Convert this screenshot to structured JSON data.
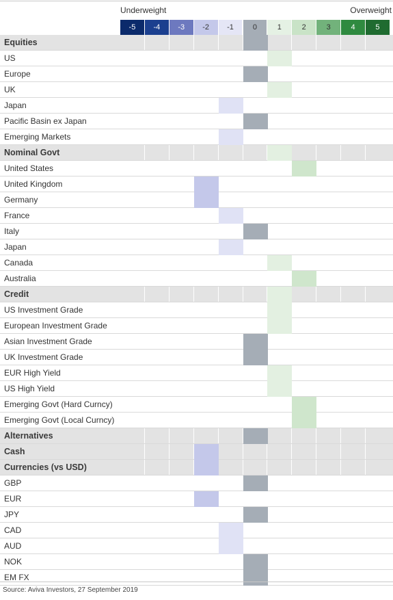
{
  "header": {
    "underweight_label": "Underweight",
    "overweight_label": "Overweight"
  },
  "scale": [
    {
      "label": "-5",
      "bg": "#0b2a6b",
      "fg": "#ffffff"
    },
    {
      "label": "-4",
      "bg": "#1b3f8f",
      "fg": "#ffffff"
    },
    {
      "label": "-3",
      "bg": "#6d79bf",
      "fg": "#ffffff"
    },
    {
      "label": "-2",
      "bg": "#c4c8ea",
      "fg": "#333333"
    },
    {
      "label": "-1",
      "bg": "#e5e6f6",
      "fg": "#333333"
    },
    {
      "label": "0",
      "bg": "#a5adb6",
      "fg": "#333333"
    },
    {
      "label": "1",
      "bg": "#e5f1e4",
      "fg": "#333333"
    },
    {
      "label": "2",
      "bg": "#c9e3c7",
      "fg": "#333333"
    },
    {
      "label": "3",
      "bg": "#72b27b",
      "fg": "#333333"
    },
    {
      "label": "4",
      "bg": "#2f8a40",
      "fg": "#ffffff"
    },
    {
      "label": "5",
      "bg": "#1f6b30",
      "fg": "#ffffff"
    }
  ],
  "rows": [
    {
      "label": "Equities",
      "header": true,
      "score": 0
    },
    {
      "label": "US",
      "header": false,
      "score": 1
    },
    {
      "label": "Europe",
      "header": false,
      "score": 0
    },
    {
      "label": "UK",
      "header": false,
      "score": 1
    },
    {
      "label": "Japan",
      "header": false,
      "score": -1
    },
    {
      "label": "Pacific Basin ex Japan",
      "header": false,
      "score": 0
    },
    {
      "label": "Emerging Markets",
      "header": false,
      "score": -1
    },
    {
      "label": "Nominal Govt",
      "header": true,
      "score": 1
    },
    {
      "label": "United States",
      "header": false,
      "score": 2
    },
    {
      "label": "United Kingdom",
      "header": false,
      "score": -2
    },
    {
      "label": "Germany",
      "header": false,
      "score": -2
    },
    {
      "label": "France",
      "header": false,
      "score": -1
    },
    {
      "label": "Italy",
      "header": false,
      "score": 0
    },
    {
      "label": "Japan",
      "header": false,
      "score": -1
    },
    {
      "label": "Canada",
      "header": false,
      "score": 1
    },
    {
      "label": "Australia",
      "header": false,
      "score": 2
    },
    {
      "label": "Credit",
      "header": true,
      "score": 1
    },
    {
      "label": "US Investment Grade",
      "header": false,
      "score": 1
    },
    {
      "label": "European Investment Grade",
      "header": false,
      "score": 1
    },
    {
      "label": "Asian Investment Grade",
      "header": false,
      "score": 0
    },
    {
      "label": "UK Investment Grade",
      "header": false,
      "score": 0
    },
    {
      "label": "EUR High Yield",
      "header": false,
      "score": 1
    },
    {
      "label": "US High Yield",
      "header": false,
      "score": 1
    },
    {
      "label": "Emerging Govt (Hard Curncy)",
      "header": false,
      "score": 2
    },
    {
      "label": "Emerging Govt (Local Curncy)",
      "header": false,
      "score": 2
    },
    {
      "label": "Alternatives",
      "header": true,
      "score": 0
    },
    {
      "label": "Cash",
      "header": true,
      "score": -2
    },
    {
      "label": "Currencies (vs USD)",
      "header": true,
      "score": -2
    },
    {
      "label": "GBP",
      "header": false,
      "score": 0
    },
    {
      "label": "EUR",
      "header": false,
      "score": -2
    },
    {
      "label": "JPY",
      "header": false,
      "score": 0
    },
    {
      "label": "CAD",
      "header": false,
      "score": -1
    },
    {
      "label": "AUD",
      "header": false,
      "score": -1
    },
    {
      "label": "NOK",
      "header": false,
      "score": 0
    },
    {
      "label": "EM FX",
      "header": false,
      "score": 0
    }
  ],
  "source": "Source: Aviva Investors, 27 September 2019"
}
